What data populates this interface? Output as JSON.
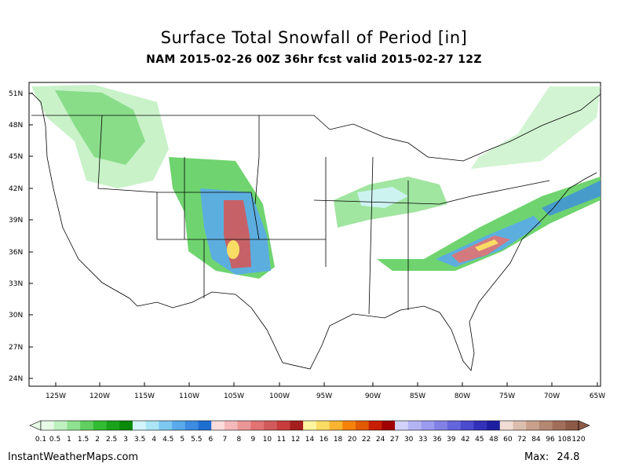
{
  "title": "Surface Total Snowfall of Period [in]",
  "subtitle": "NAM 2015-02-26 00Z 36hr fcst valid 2015-02-27 12Z",
  "map": {
    "lat_labels": [
      "51N",
      "48N",
      "45N",
      "42N",
      "39N",
      "36N",
      "33N",
      "30N",
      "27N",
      "24N"
    ],
    "lon_labels": [
      "125W",
      "120W",
      "115W",
      "110W",
      "105W",
      "100W",
      "95W",
      "90W",
      "85W",
      "80W",
      "75W",
      "70W",
      "65W"
    ]
  },
  "colorbar": {
    "labels": [
      "0.1",
      "0.5",
      "1",
      "1.5",
      "2",
      "2.5",
      "3",
      "3.5",
      "4",
      "4.5",
      "5",
      "5.5",
      "6",
      "7",
      "8",
      "9",
      "10",
      "11",
      "12",
      "14",
      "16",
      "18",
      "20",
      "22",
      "24",
      "27",
      "30",
      "33",
      "36",
      "39",
      "42",
      "45",
      "48",
      "60",
      "72",
      "84",
      "96",
      "108",
      "120"
    ],
    "colors": [
      "#e6fae6",
      "#bff0bf",
      "#8fe08f",
      "#5fcf5f",
      "#33bb33",
      "#1aa31a",
      "#0a8a0a",
      "#d2f4fa",
      "#aae6f5",
      "#7dc8f0",
      "#5aaaeb",
      "#3c8ce1",
      "#1e6ed2",
      "#fadcdc",
      "#f5b9b9",
      "#eb9696",
      "#e17373",
      "#d25a5a",
      "#c83c3c",
      "#a51e1e",
      "#fff5a0",
      "#fadc64",
      "#fab432",
      "#f5820a",
      "#e15a00",
      "#c81e00",
      "#a00000",
      "#d2d2fa",
      "#b4b4f5",
      "#9b9bf0",
      "#8282e6",
      "#6464dc",
      "#4b4bcd",
      "#3232b9",
      "#1e1ea0",
      "#f0dcd2",
      "#dcbeaf",
      "#c8a08c",
      "#b48773",
      "#a06e5a",
      "#8c5a46"
    ]
  },
  "footer": {
    "source": "InstantWeatherMaps.com",
    "max_label": "Max:",
    "max_value": "24.8"
  }
}
